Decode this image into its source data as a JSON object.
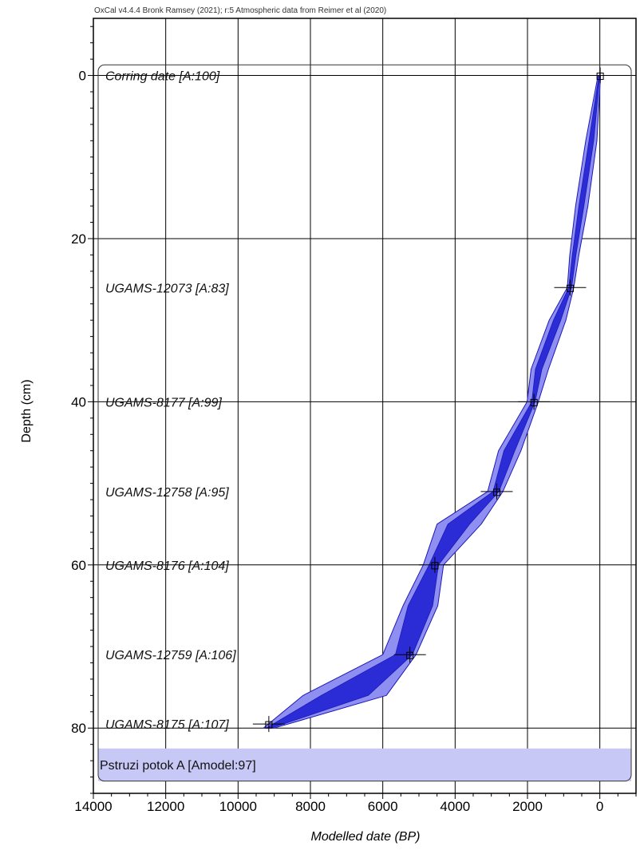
{
  "credit": "OxCal v4.4.4 Bronk Ramsey (2021); r:5 Atmospheric data from Reimer et al (2020)",
  "chart_data": {
    "type": "area",
    "title": "",
    "xlabel": "Modelled date (BP)",
    "ylabel": "Depth (cm)",
    "xlim": [
      14000,
      -1000
    ],
    "ylim": [
      -7,
      88
    ],
    "x_ticks": [
      "14000",
      "12000",
      "10000",
      "8000",
      "6000",
      "4000",
      "2000",
      "0"
    ],
    "y_ticks": [
      "0",
      "20",
      "40",
      "60",
      "80"
    ],
    "grid": true,
    "samples": [
      {
        "label": "Corring date [A:100]",
        "depth": 0,
        "age": -10
      },
      {
        "label": "UGAMS-12073 [A:83]",
        "depth": 26,
        "age": 820
      },
      {
        "label": "UGAMS-8177 [A:99]",
        "depth": 40,
        "age": 1820
      },
      {
        "label": "UGAMS-12758 [A:95]",
        "depth": 51,
        "age": 2850
      },
      {
        "label": "UGAMS-8176 [A:104]",
        "depth": 60,
        "age": 4560
      },
      {
        "label": "UGAMS-12759 [A:106]",
        "depth": 71,
        "age": 5250
      },
      {
        "label": "UGAMS-8175 [A:107]",
        "depth": 79.5,
        "age": 9150
      }
    ],
    "model": {
      "label": "Pstruzi potok A [Amodel:97]",
      "depth_range": [
        82.5,
        86.5
      ]
    },
    "envelope_95": {
      "depth": [
        0,
        8,
        16,
        22,
        26,
        30,
        36,
        40,
        46,
        51,
        55,
        60,
        65,
        71,
        76,
        80
      ],
      "young": [
        -20,
        80,
        330,
        580,
        720,
        940,
        1420,
        1700,
        2180,
        2680,
        3280,
        4320,
        4480,
        5080,
        5900,
        9000
      ],
      "old": [
        50,
        390,
        670,
        830,
        900,
        1400,
        1900,
        2010,
        2800,
        3100,
        4500,
        4880,
        5440,
        6000,
        8200,
        9300
      ]
    },
    "envelope_68": {
      "depth": [
        0,
        8,
        16,
        22,
        26,
        30,
        36,
        40,
        46,
        51,
        55,
        60,
        65,
        71,
        76,
        80
      ],
      "young": [
        0,
        170,
        440,
        660,
        780,
        1080,
        1600,
        1790,
        2350,
        2790,
        3600,
        4460,
        4620,
        5180,
        6400,
        9080
      ],
      "old": [
        25,
        300,
        580,
        760,
        860,
        1280,
        1780,
        1880,
        2650,
        2950,
        4200,
        4720,
        5300,
        5650,
        7700,
        9220
      ]
    },
    "colors": {
      "outer": "#8f8ff2",
      "inner": "#2c2cd6",
      "outline": "#1a1ab8",
      "model_band": "#c8c8f7"
    }
  }
}
